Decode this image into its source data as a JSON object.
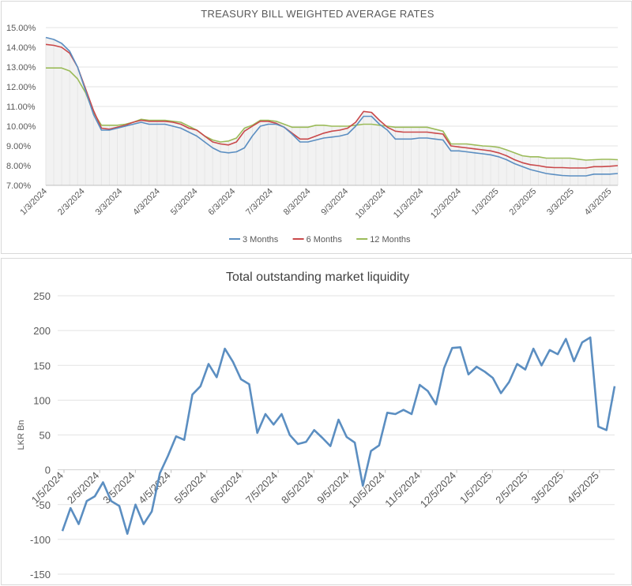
{
  "chart_data": [
    {
      "type": "line",
      "title": "TREASURY BILL WEIGHTED AVERAGE RATES",
      "xlabel": "",
      "ylabel": "",
      "ylim": [
        0.07,
        0.15
      ],
      "ytick_labels": [
        "15.00%",
        "14.00%",
        "13.00%",
        "12.00%",
        "11.00%",
        "10.00%",
        "9.00%",
        "8.00%",
        "7.00%"
      ],
      "xtick_labels": [
        "1/3/2024",
        "2/3/2024",
        "3/3/2024",
        "4/3/2024",
        "5/3/2024",
        "6/3/2024",
        "7/3/2024",
        "8/3/2024",
        "9/3/2024",
        "10/3/2024",
        "11/3/2024",
        "12/3/2024",
        "1/3/2025",
        "2/3/2025",
        "3/3/2025",
        "4/3/2025"
      ],
      "x_note": "weekly observations from 1/3/2024 to 4/21/2025",
      "legend": "bottom",
      "grid": "horizontal",
      "series": [
        {
          "name": "3 Months",
          "color": "#5b8ec1",
          "values": [
            0.145,
            0.144,
            0.142,
            0.138,
            0.13,
            0.118,
            0.106,
            0.098,
            0.098,
            0.099,
            0.1,
            0.101,
            0.102,
            0.101,
            0.101,
            0.101,
            0.1,
            0.099,
            0.097,
            0.095,
            0.092,
            0.089,
            0.087,
            0.0865,
            0.087,
            0.089,
            0.095,
            0.1,
            0.101,
            0.101,
            0.0995,
            0.096,
            0.092,
            0.092,
            0.093,
            0.094,
            0.0945,
            0.095,
            0.096,
            0.1,
            0.105,
            0.105,
            0.101,
            0.098,
            0.0935,
            0.0935,
            0.0935,
            0.094,
            0.094,
            0.0935,
            0.093,
            0.0875,
            0.0875,
            0.087,
            0.0865,
            0.086,
            0.0855,
            0.0845,
            0.083,
            0.081,
            0.0795,
            0.078,
            0.077,
            0.076,
            0.0755,
            0.075,
            0.0748,
            0.0748,
            0.0748,
            0.0757,
            0.0757,
            0.0757,
            0.076
          ]
        },
        {
          "name": "6 Months",
          "color": "#c9484a",
          "values": [
            0.1415,
            0.141,
            0.14,
            0.137,
            0.13,
            0.119,
            0.108,
            0.099,
            0.0985,
            0.0995,
            0.1005,
            0.102,
            0.103,
            0.1025,
            0.1025,
            0.1025,
            0.102,
            0.101,
            0.099,
            0.098,
            0.095,
            0.092,
            0.091,
            0.0905,
            0.092,
            0.0975,
            0.1,
            0.1025,
            0.1025,
            0.1015,
            0.0995,
            0.0965,
            0.0935,
            0.0935,
            0.095,
            0.0965,
            0.0975,
            0.098,
            0.099,
            0.102,
            0.1075,
            0.107,
            0.103,
            0.0995,
            0.0975,
            0.097,
            0.097,
            0.097,
            0.097,
            0.0965,
            0.096,
            0.09,
            0.0895,
            0.089,
            0.0885,
            0.088,
            0.0875,
            0.0865,
            0.085,
            0.083,
            0.0815,
            0.0805,
            0.08,
            0.0793,
            0.079,
            0.079,
            0.0788,
            0.0788,
            0.0788,
            0.0795,
            0.0795,
            0.0797,
            0.08
          ]
        },
        {
          "name": "12 Months",
          "color": "#9bbb59",
          "values": [
            0.1295,
            0.1295,
            0.1295,
            0.128,
            0.124,
            0.117,
            0.107,
            0.1005,
            0.1005,
            0.1005,
            0.101,
            0.102,
            0.1035,
            0.103,
            0.103,
            0.103,
            0.1025,
            0.102,
            0.1,
            0.098,
            0.095,
            0.093,
            0.092,
            0.0925,
            0.094,
            0.099,
            0.1005,
            0.103,
            0.103,
            0.1025,
            0.101,
            0.0995,
            0.0995,
            0.0995,
            0.1005,
            0.1005,
            0.1,
            0.1,
            0.1,
            0.1005,
            0.101,
            0.101,
            0.1005,
            0.1,
            0.0995,
            0.0995,
            0.0995,
            0.0995,
            0.0995,
            0.0985,
            0.0975,
            0.091,
            0.091,
            0.091,
            0.0905,
            0.09,
            0.0898,
            0.0893,
            0.088,
            0.0865,
            0.085,
            0.0845,
            0.0845,
            0.0838,
            0.0838,
            0.0838,
            0.0838,
            0.0833,
            0.0828,
            0.083,
            0.0832,
            0.0832,
            0.083
          ]
        }
      ]
    },
    {
      "type": "line",
      "title": "Total outstanding market liquidity",
      "xlabel": "",
      "ylabel": "LKR Bn",
      "ylim": [
        -150,
        250
      ],
      "yticks": [
        250,
        200,
        150,
        100,
        50,
        0,
        -50,
        -100,
        -150
      ],
      "xtick_labels": [
        "1/5/2024",
        "2/5/2024",
        "3/5/2024",
        "4/5/2024",
        "5/5/2024",
        "6/5/2024",
        "7/5/2024",
        "8/5/2024",
        "9/5/2024",
        "10/5/2024",
        "11/5/2024",
        "12/5/2024",
        "1/5/2025",
        "2/5/2025",
        "3/5/2025",
        "4/5/2025"
      ],
      "x_note": "weekly observations",
      "grid": "horizontal",
      "series": [
        {
          "name": "",
          "color": "#5b8ec1",
          "values": [
            -88,
            -55,
            -78,
            -45,
            -38,
            -18,
            -45,
            -52,
            -92,
            -50,
            -78,
            -60,
            -5,
            20,
            48,
            43,
            108,
            120,
            152,
            133,
            174,
            155,
            130,
            123,
            53,
            80,
            65,
            80,
            50,
            37,
            40,
            57,
            46,
            34,
            72,
            47,
            39,
            -23,
            27,
            35,
            82,
            80,
            86,
            80,
            122,
            113,
            94,
            146,
            175,
            176,
            137,
            148,
            141,
            132,
            110,
            126,
            152,
            144,
            174,
            150,
            172,
            166,
            188,
            156,
            183,
            190,
            62,
            57,
            120
          ]
        }
      ]
    }
  ]
}
